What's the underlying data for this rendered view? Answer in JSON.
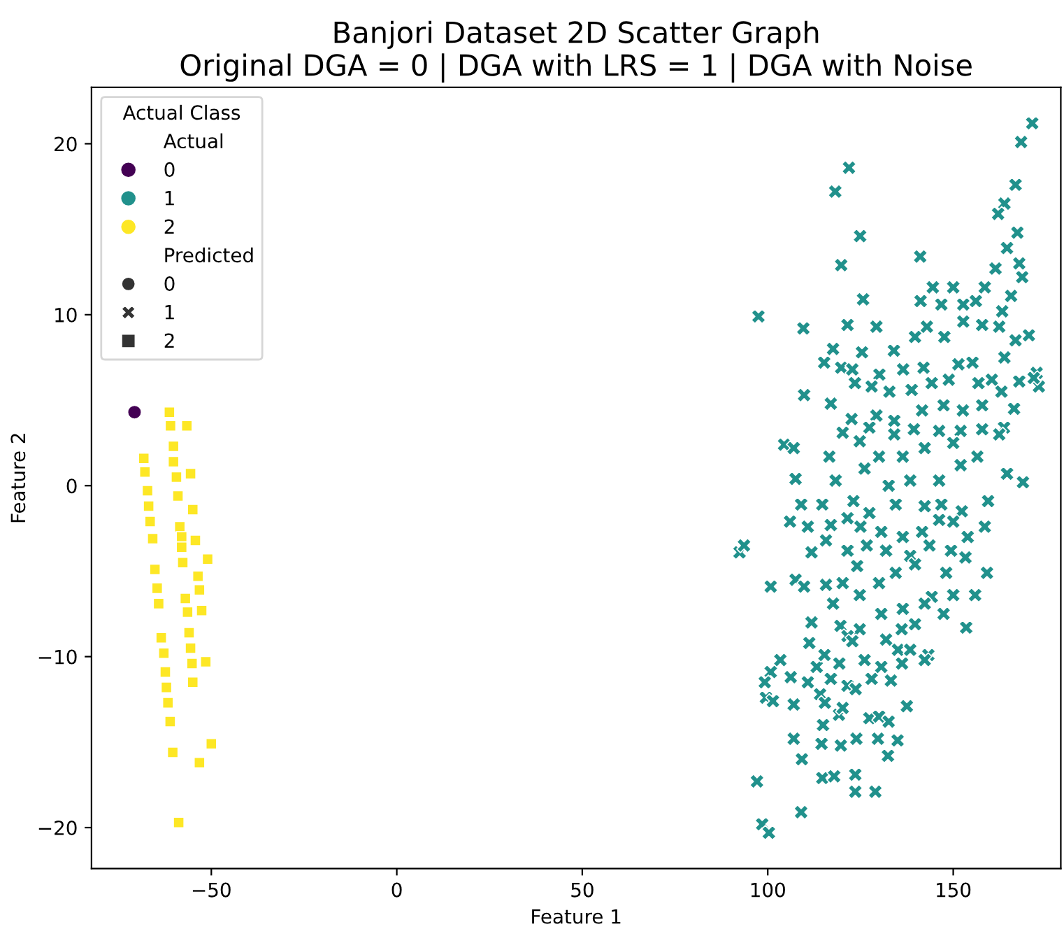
{
  "chart_data": {
    "type": "scatter",
    "title": "Banjori Dataset 2D Scatter Graph\nOriginal DGA = 0 | DGA with LRS = 1 | DGA with Noise",
    "xlabel": "Feature 1",
    "ylabel": "Feature 2",
    "legend_title": "Actual Class",
    "annotations": [
      "Actual",
      "Predicted"
    ],
    "legend": "top left",
    "grid": false,
    "xlim": [
      -82.3,
      179
    ],
    "ylim": [
      -22.4,
      23.3
    ],
    "xticks": [
      -50,
      0,
      50,
      100,
      150
    ],
    "yticks": [
      -20,
      -10,
      0,
      10,
      20
    ],
    "series": [
      {
        "name": "0",
        "color": "#440154",
        "marker": "circle",
        "x": [
          -70.7
        ],
        "values": [
          4.3
        ]
      },
      {
        "name": "1",
        "color": "#21918c",
        "marker": "cross",
        "x": [
          171.3,
          168.3,
          121.9,
          118.2,
          166.8,
          163.8,
          162.1,
          124.9,
          167.3,
          164.5,
          119.8,
          141.1,
          161.4,
          167.8,
          168.6,
          125.7,
          97.5,
          109.6,
          144.5,
          150.0,
          158.5,
          165.6,
          156.1,
          152.7,
          141.2,
          146.8,
          163.2,
          170.4,
          166.8,
          152.7,
          147.6,
          121.5,
          129.3,
          115.2,
          117.6,
          125.4,
          134.0,
          139.7,
          142.9,
          157.8,
          162.4,
          119.8,
          122.8,
          130.1,
          136.5,
          142.0,
          151.4,
          155.2,
          163.8,
          172.5,
          173.1,
          171.7,
          167.8,
          109.8,
          117.0,
          123.5,
          128.0,
          132.8,
          138.8,
          144.2,
          148.8,
          156.8,
          160.4,
          163.0,
          166.4,
          122.6,
          129.3,
          134.1,
          141.6,
          147.4,
          152.6,
          157.8,
          120.2,
          127.4,
          134.1,
          139.4,
          146.2,
          152.0,
          157.8,
          163.7,
          104.4,
          107.0,
          116.6,
          124.8,
          130.0,
          136.4,
          142.3,
          150.0,
          162.4,
          107.5,
          118.3,
          126.1,
          132.6,
          138.4,
          146.2,
          152.0,
          156.5,
          164.5,
          168.8,
          109.0,
          114.7,
          123.1,
          127.4,
          134.5,
          142.3,
          146.8,
          152.3,
          159.4,
          106.0,
          110.8,
          117.0,
          121.5,
          125.0,
          130.6,
          136.4,
          141.6,
          146.2,
          150.0,
          158.5,
          92.4,
          93.6,
          111.8,
          115.7,
          121.5,
          126.7,
          131.9,
          138.4,
          143.6,
          149.4,
          153.9,
          153.3,
          100.8,
          107.5,
          109.8,
          115.7,
          120.2,
          124.1,
          130.0,
          134.5,
          139.7,
          144.2,
          148.1,
          150.0,
          155.9,
          159.1,
          117.6,
          124.8,
          130.6,
          136.4,
          142.3,
          147.4,
          111.8,
          119.6,
          124.8,
          131.9,
          136.1,
          139.7,
          153.5,
          111.2,
          121.5,
          122.8,
          135.1,
          138.4,
          143.3,
          142.3,
          103.4,
          100.8,
          99.2,
          99.5,
          101.4,
          106.2,
          110.8,
          113.2,
          115.3,
          117.0,
          119.3,
          121.5,
          123.7,
          126.1,
          128.0,
          130.6,
          133.2,
          136.2,
          107.0,
          114.1,
          115.4,
          119.2,
          120.2,
          127.4,
          130.0,
          132.6,
          137.5,
          114.9,
          107.0,
          114.5,
          119.7,
          123.9,
          129.7,
          135.0,
          132.4,
          109.2,
          97.1,
          114.7,
          117.9,
          123.6,
          123.6,
          129.0,
          109.0,
          98.5,
          100.3
        ],
        "values": [
          21.2,
          20.1,
          18.6,
          17.2,
          17.6,
          16.5,
          15.9,
          14.6,
          14.8,
          13.9,
          12.9,
          13.4,
          12.7,
          13.0,
          12.2,
          10.9,
          9.9,
          9.2,
          11.6,
          11.6,
          11.6,
          11.1,
          10.8,
          10.6,
          10.8,
          10.6,
          10.2,
          8.8,
          8.5,
          9.6,
          8.7,
          9.4,
          9.3,
          7.2,
          8.0,
          7.8,
          7.9,
          8.7,
          9.3,
          9.4,
          9.3,
          6.9,
          6.8,
          6.5,
          6.8,
          6.9,
          7.1,
          7.2,
          7.5,
          6.6,
          5.8,
          6.3,
          6.1,
          5.3,
          4.8,
          6.0,
          5.8,
          5.5,
          5.6,
          6.0,
          6.2,
          6.0,
          6.2,
          5.5,
          4.5,
          3.9,
          4.1,
          3.8,
          4.4,
          4.7,
          4.4,
          4.7,
          3.1,
          3.4,
          3.0,
          3.3,
          3.2,
          3.2,
          3.3,
          3.4,
          2.4,
          2.2,
          1.7,
          2.6,
          1.7,
          1.7,
          2.2,
          2.5,
          3.0,
          0.4,
          0.3,
          1.0,
          0.0,
          0.3,
          0.3,
          1.2,
          1.7,
          0.7,
          0.2,
          -1.1,
          -1.1,
          -0.9,
          -1.6,
          -1.1,
          -1.2,
          -1.1,
          -1.5,
          -0.9,
          -2.1,
          -2.4,
          -2.3,
          -1.9,
          -2.4,
          -2.7,
          -3.0,
          -2.7,
          -2.0,
          -2.1,
          -2.4,
          -3.9,
          -3.5,
          -3.9,
          -3.2,
          -3.8,
          -3.5,
          -3.8,
          -4.1,
          -3.5,
          -3.8,
          -3.0,
          -4.2,
          -5.9,
          -5.5,
          -5.9,
          -5.8,
          -5.7,
          -4.7,
          -5.7,
          -5.1,
          -4.6,
          -6.5,
          -5.1,
          -6.4,
          -6.4,
          -5.1,
          -6.9,
          -6.4,
          -7.5,
          -7.2,
          -6.9,
          -7.5,
          -8.0,
          -8.2,
          -8.4,
          -9.0,
          -8.4,
          -8.1,
          -8.3,
          -9.2,
          -8.8,
          -9.1,
          -9.6,
          -9.6,
          -9.9,
          -10.2,
          -10.2,
          -10.9,
          -11.5,
          -12.4,
          -12.6,
          -11.2,
          -11.5,
          -10.6,
          -9.9,
          -11.3,
          -10.4,
          -11.7,
          -11.9,
          -10.2,
          -11.3,
          -10.6,
          -11.4,
          -10.4,
          -12.8,
          -12.2,
          -12.7,
          -13.4,
          -13.0,
          -13.6,
          -13.5,
          -13.8,
          -12.9,
          -14.0,
          -14.8,
          -15.1,
          -15.2,
          -14.8,
          -14.8,
          -14.9,
          -15.8,
          -16.0,
          -17.3,
          -17.1,
          -17.0,
          -16.9,
          -17.9,
          -17.9,
          -19.1,
          -19.8,
          -20.3
        ]
      },
      {
        "name": "2",
        "color": "#fde725",
        "marker": "square",
        "x": [
          -61.3,
          -61.0,
          -56.6,
          -60.2,
          -68.2,
          -67.9,
          -60.2,
          -59.4,
          -55.6,
          -67.2,
          -59.0,
          -66.9,
          -55.0,
          -66.5,
          -58.5,
          -65.8,
          -58.0,
          -54.3,
          -58.0,
          -57.7,
          -51.0,
          -65.2,
          -53.6,
          -64.6,
          -53.2,
          -64.2,
          -57.0,
          -56.4,
          -52.6,
          -63.5,
          -56.0,
          -62.8,
          -55.6,
          -62.4,
          -55.2,
          -51.5,
          -55.0,
          -62.1,
          -61.7,
          -61.1,
          -50.0,
          -60.4,
          -53.2,
          -58.8
        ],
        "values": [
          4.3,
          3.5,
          3.5,
          2.3,
          1.6,
          0.8,
          1.4,
          0.5,
          0.7,
          -0.3,
          -0.6,
          -1.2,
          -1.4,
          -2.1,
          -2.4,
          -3.1,
          -3.0,
          -3.2,
          -3.6,
          -4.5,
          -4.3,
          -4.9,
          -5.3,
          -6.0,
          -6.1,
          -6.9,
          -6.6,
          -7.4,
          -7.3,
          -8.9,
          -8.6,
          -9.8,
          -9.5,
          -10.9,
          -10.4,
          -10.3,
          -11.5,
          -11.8,
          -12.7,
          -13.8,
          -15.1,
          -15.6,
          -16.2,
          -19.7
        ]
      }
    ]
  }
}
